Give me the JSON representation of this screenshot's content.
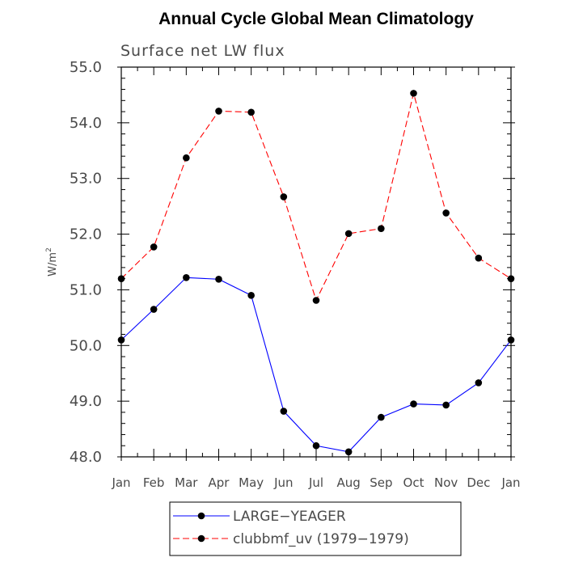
{
  "chart_data": {
    "type": "line",
    "title": "Annual Cycle Global Mean Climatology",
    "subtitle": "Surface net LW flux",
    "ylabel_base": "W/m",
    "ylabel_sup": "2",
    "xlabel": "",
    "categories": [
      "Jan",
      "Feb",
      "Mar",
      "Apr",
      "May",
      "Jun",
      "Jul",
      "Aug",
      "Sep",
      "Oct",
      "Nov",
      "Dec",
      "Jan"
    ],
    "ylim": [
      48.0,
      55.0
    ],
    "yticks": [
      "48.0",
      "49.0",
      "50.0",
      "51.0",
      "52.0",
      "53.0",
      "54.0",
      "55.0"
    ],
    "series": [
      {
        "name": "LARGE−YEAGER",
        "color": "#0000ff",
        "dash": "solid",
        "values": [
          50.1,
          50.65,
          51.22,
          51.19,
          50.9,
          48.82,
          48.2,
          48.09,
          48.71,
          48.95,
          48.93,
          49.33,
          50.1
        ]
      },
      {
        "name": "clubbmf_uv (1979−1979)",
        "color": "#ff0000",
        "dash": "dashed",
        "values": [
          51.2,
          51.77,
          53.37,
          54.21,
          54.19,
          52.67,
          50.81,
          52.01,
          52.1,
          54.53,
          52.38,
          51.57,
          51.2
        ]
      }
    ],
    "grid": false,
    "legend_position": "bottom-center"
  }
}
